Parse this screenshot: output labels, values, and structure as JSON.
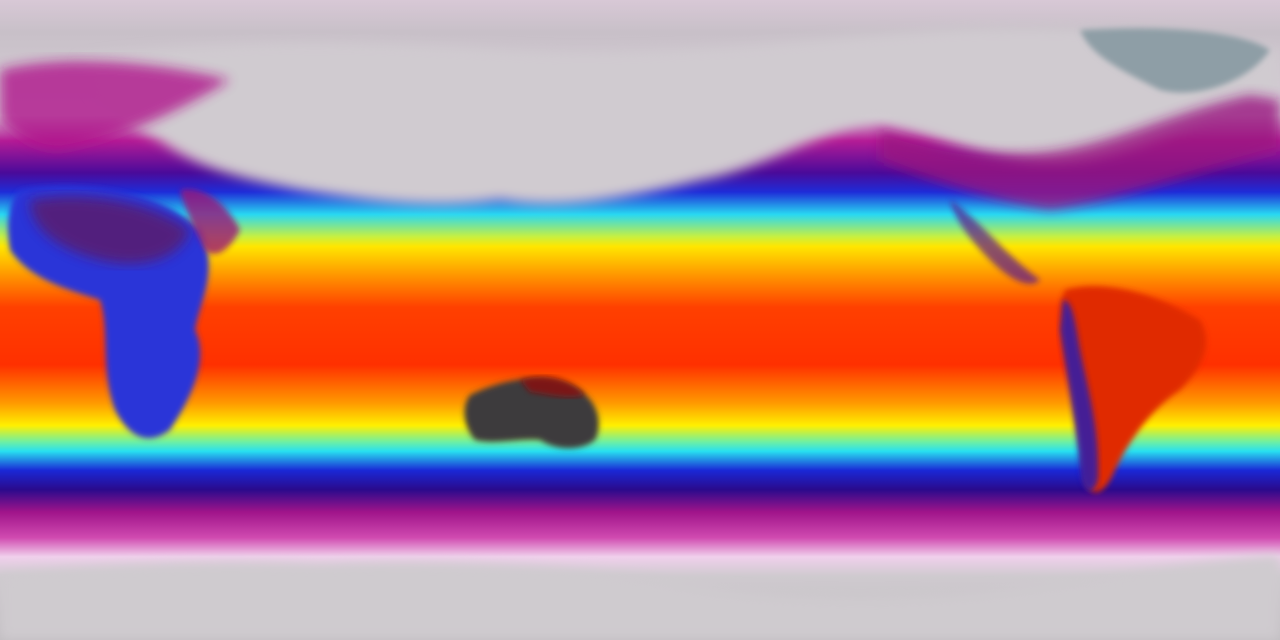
{
  "map": {
    "projection": "equirectangular",
    "labels": [],
    "colors": {
      "polar_land": "#c8c4c8",
      "cold_magenta": "#b0148c",
      "purple": "#50148c",
      "blue": "#1428d2",
      "cyan": "#28e6f0",
      "yellow": "#fff000",
      "orange": "#ff8c00",
      "red": "#ff2800",
      "dark_land": "#3c3c3c"
    }
  }
}
